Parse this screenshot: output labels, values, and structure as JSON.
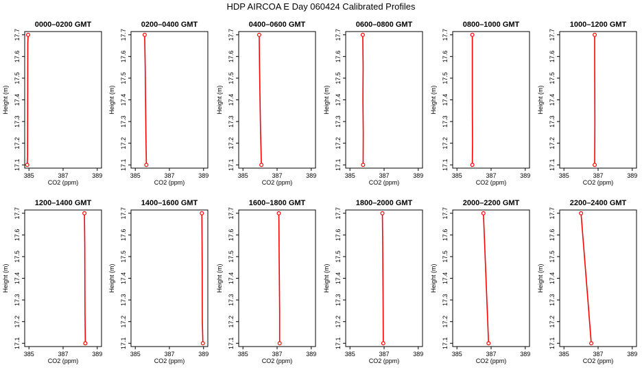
{
  "figure": {
    "title": "HDP  AIRCOA E  Day 060424  Calibrated Profiles"
  },
  "colors": {
    "line": "#ff0000",
    "marker": "#ff0000",
    "axis": "#000000",
    "background": "#ffffff"
  },
  "chart_data": [
    {
      "type": "line",
      "title": "0000–0200 GMT",
      "xlabel": "CO2 (ppm)",
      "ylabel": "Height (m)",
      "xlim": [
        384.75,
        389.25
      ],
      "ylim": [
        17.085,
        17.715
      ],
      "xticks": [
        385,
        387,
        389
      ],
      "xtick_labels": [
        "385",
        "387",
        "389"
      ],
      "yticks": [
        17.1,
        17.2,
        17.3,
        17.4,
        17.5,
        17.6,
        17.7
      ],
      "ytick_labels": [
        "17.1",
        "17.2",
        "17.3",
        "17.4",
        "17.5",
        "17.6",
        "17.7"
      ],
      "grid": false,
      "legend": "none",
      "x": [
        384.95,
        384.93,
        384.92,
        384.9
      ],
      "y": [
        17.7,
        17.66,
        17.14,
        17.1
      ],
      "markers_at": [
        0,
        3
      ]
    },
    {
      "type": "line",
      "title": "0200–0400 GMT",
      "xlabel": "CO2 (ppm)",
      "ylabel": "Height (m)",
      "xlim": [
        384.75,
        389.25
      ],
      "ylim": [
        17.085,
        17.715
      ],
      "xticks": [
        385,
        387,
        389
      ],
      "xtick_labels": [
        "385",
        "387",
        "389"
      ],
      "yticks": [
        17.1,
        17.2,
        17.3,
        17.4,
        17.5,
        17.6,
        17.7
      ],
      "ytick_labels": [
        "17.1",
        "17.2",
        "17.3",
        "17.4",
        "17.5",
        "17.6",
        "17.7"
      ],
      "grid": false,
      "legend": "none",
      "x": [
        385.55,
        385.58,
        385.6,
        385.62,
        385.65
      ],
      "y": [
        17.7,
        17.55,
        17.4,
        17.25,
        17.1
      ],
      "markers_at": [
        0,
        4
      ]
    },
    {
      "type": "line",
      "title": "0400–0600 GMT",
      "xlabel": "CO2 (ppm)",
      "ylabel": "Height (m)",
      "xlim": [
        384.75,
        389.25
      ],
      "ylim": [
        17.085,
        17.715
      ],
      "xticks": [
        385,
        387,
        389
      ],
      "xtick_labels": [
        "385",
        "387",
        "389"
      ],
      "yticks": [
        17.1,
        17.2,
        17.3,
        17.4,
        17.5,
        17.6,
        17.7
      ],
      "ytick_labels": [
        "17.1",
        "17.2",
        "17.3",
        "17.4",
        "17.5",
        "17.6",
        "17.7"
      ],
      "grid": false,
      "legend": "none",
      "x": [
        385.95,
        385.97,
        386.0,
        386.03,
        386.08
      ],
      "y": [
        17.7,
        17.55,
        17.4,
        17.25,
        17.1
      ],
      "markers_at": [
        0,
        4
      ]
    },
    {
      "type": "line",
      "title": "0600–0800 GMT",
      "xlabel": "CO2 (ppm)",
      "ylabel": "Height (m)",
      "xlim": [
        384.75,
        389.25
      ],
      "ylim": [
        17.085,
        17.715
      ],
      "xticks": [
        385,
        387,
        389
      ],
      "xtick_labels": [
        "385",
        "387",
        "389"
      ],
      "yticks": [
        17.1,
        17.2,
        17.3,
        17.4,
        17.5,
        17.6,
        17.7
      ],
      "ytick_labels": [
        "17.1",
        "17.2",
        "17.3",
        "17.4",
        "17.5",
        "17.6",
        "17.7"
      ],
      "grid": false,
      "legend": "none",
      "x": [
        385.75,
        385.77,
        385.76,
        385.78,
        385.77
      ],
      "y": [
        17.7,
        17.55,
        17.4,
        17.25,
        17.1
      ],
      "markers_at": [
        0,
        4
      ]
    },
    {
      "type": "line",
      "title": "0800–1000 GMT",
      "xlabel": "CO2 (ppm)",
      "ylabel": "Height (m)",
      "xlim": [
        384.75,
        389.25
      ],
      "ylim": [
        17.085,
        17.715
      ],
      "xticks": [
        385,
        387,
        389
      ],
      "xtick_labels": [
        "385",
        "387",
        "389"
      ],
      "yticks": [
        17.1,
        17.2,
        17.3,
        17.4,
        17.5,
        17.6,
        17.7
      ],
      "ytick_labels": [
        "17.1",
        "17.2",
        "17.3",
        "17.4",
        "17.5",
        "17.6",
        "17.7"
      ],
      "grid": false,
      "legend": "none",
      "x": [
        385.9,
        385.9,
        385.91,
        385.9
      ],
      "y": [
        17.7,
        17.4,
        17.2,
        17.1
      ],
      "markers_at": [
        0,
        3
      ]
    },
    {
      "type": "line",
      "title": "1000–1200 GMT",
      "xlabel": "CO2 (ppm)",
      "ylabel": "Height (m)",
      "xlim": [
        384.75,
        389.25
      ],
      "ylim": [
        17.085,
        17.715
      ],
      "xticks": [
        385,
        387,
        389
      ],
      "xtick_labels": [
        "385",
        "387",
        "389"
      ],
      "yticks": [
        17.1,
        17.2,
        17.3,
        17.4,
        17.5,
        17.6,
        17.7
      ],
      "ytick_labels": [
        "17.1",
        "17.2",
        "17.3",
        "17.4",
        "17.5",
        "17.6",
        "17.7"
      ],
      "grid": false,
      "legend": "none",
      "x": [
        386.8,
        386.8,
        386.81,
        386.8
      ],
      "y": [
        17.7,
        17.58,
        17.3,
        17.1
      ],
      "markers_at": [
        0,
        3
      ]
    },
    {
      "type": "line",
      "title": "1200–1400 GMT",
      "xlabel": "CO2 (ppm)",
      "ylabel": "Height (m)",
      "xlim": [
        384.75,
        389.25
      ],
      "ylim": [
        17.085,
        17.715
      ],
      "xticks": [
        385,
        387,
        389
      ],
      "xtick_labels": [
        "385",
        "387",
        "389"
      ],
      "yticks": [
        17.1,
        17.2,
        17.3,
        17.4,
        17.5,
        17.6,
        17.7
      ],
      "ytick_labels": [
        "17.1",
        "17.2",
        "17.3",
        "17.4",
        "17.5",
        "17.6",
        "17.7"
      ],
      "grid": false,
      "legend": "none",
      "x": [
        388.25,
        388.27,
        388.28,
        388.3
      ],
      "y": [
        17.7,
        17.55,
        17.25,
        17.1
      ],
      "markers_at": [
        0,
        3
      ]
    },
    {
      "type": "line",
      "title": "1400–1600 GMT",
      "xlabel": "CO2 (ppm)",
      "ylabel": "Height (m)",
      "xlim": [
        384.75,
        389.25
      ],
      "ylim": [
        17.085,
        17.715
      ],
      "xticks": [
        385,
        387,
        389
      ],
      "xtick_labels": [
        "385",
        "387",
        "389"
      ],
      "yticks": [
        17.1,
        17.2,
        17.3,
        17.4,
        17.5,
        17.6,
        17.7
      ],
      "ytick_labels": [
        "17.1",
        "17.2",
        "17.3",
        "17.4",
        "17.5",
        "17.6",
        "17.7"
      ],
      "grid": false,
      "legend": "none",
      "x": [
        388.9,
        388.92,
        388.93,
        388.96
      ],
      "y": [
        17.7,
        17.45,
        17.2,
        17.1
      ],
      "markers_at": [
        0,
        3
      ]
    },
    {
      "type": "line",
      "title": "1600–1800 GMT",
      "xlabel": "CO2 (ppm)",
      "ylabel": "Height (m)",
      "xlim": [
        384.75,
        389.25
      ],
      "ylim": [
        17.085,
        17.715
      ],
      "xticks": [
        385,
        387,
        389
      ],
      "xtick_labels": [
        "385",
        "387",
        "389"
      ],
      "yticks": [
        17.1,
        17.2,
        17.3,
        17.4,
        17.5,
        17.6,
        17.7
      ],
      "ytick_labels": [
        "17.1",
        "17.2",
        "17.3",
        "17.4",
        "17.5",
        "17.6",
        "17.7"
      ],
      "grid": false,
      "legend": "none",
      "x": [
        387.1,
        387.12,
        387.15,
        387.15
      ],
      "y": [
        17.7,
        17.5,
        17.25,
        17.1
      ],
      "markers_at": [
        0,
        3
      ]
    },
    {
      "type": "line",
      "title": "1800–2000 GMT",
      "xlabel": "CO2 (ppm)",
      "ylabel": "Height (m)",
      "xlim": [
        384.75,
        389.25
      ],
      "ylim": [
        17.085,
        17.715
      ],
      "xticks": [
        385,
        387,
        389
      ],
      "xtick_labels": [
        "385",
        "387",
        "389"
      ],
      "yticks": [
        17.1,
        17.2,
        17.3,
        17.4,
        17.5,
        17.6,
        17.7
      ],
      "ytick_labels": [
        "17.1",
        "17.2",
        "17.3",
        "17.4",
        "17.5",
        "17.6",
        "17.7"
      ],
      "grid": false,
      "legend": "none",
      "x": [
        386.9,
        386.92,
        386.94,
        386.95
      ],
      "y": [
        17.7,
        17.55,
        17.3,
        17.1
      ],
      "markers_at": [
        0,
        3
      ]
    },
    {
      "type": "line",
      "title": "2000–2200 GMT",
      "xlabel": "CO2 (ppm)",
      "ylabel": "Height (m)",
      "xlim": [
        384.75,
        389.25
      ],
      "ylim": [
        17.085,
        17.715
      ],
      "xticks": [
        385,
        387,
        389
      ],
      "xtick_labels": [
        "385",
        "387",
        "389"
      ],
      "yticks": [
        17.1,
        17.2,
        17.3,
        17.4,
        17.5,
        17.6,
        17.7
      ],
      "ytick_labels": [
        "17.1",
        "17.2",
        "17.3",
        "17.4",
        "17.5",
        "17.6",
        "17.7"
      ],
      "grid": false,
      "legend": "none",
      "x": [
        386.55,
        386.65,
        386.75,
        386.85
      ],
      "y": [
        17.7,
        17.5,
        17.3,
        17.1
      ],
      "markers_at": [
        0,
        3
      ]
    },
    {
      "type": "line",
      "title": "2200–2400 GMT",
      "xlabel": "CO2 (ppm)",
      "ylabel": "Height (m)",
      "xlim": [
        384.75,
        389.25
      ],
      "ylim": [
        17.085,
        17.715
      ],
      "xticks": [
        385,
        387,
        389
      ],
      "xtick_labels": [
        "385",
        "387",
        "389"
      ],
      "yticks": [
        17.1,
        17.2,
        17.3,
        17.4,
        17.5,
        17.6,
        17.7
      ],
      "ytick_labels": [
        "17.1",
        "17.2",
        "17.3",
        "17.4",
        "17.5",
        "17.6",
        "17.7"
      ],
      "grid": false,
      "legend": "none",
      "x": [
        386.0,
        386.2,
        386.4,
        386.6
      ],
      "y": [
        17.7,
        17.5,
        17.3,
        17.1
      ],
      "markers_at": [
        0,
        3
      ]
    }
  ]
}
